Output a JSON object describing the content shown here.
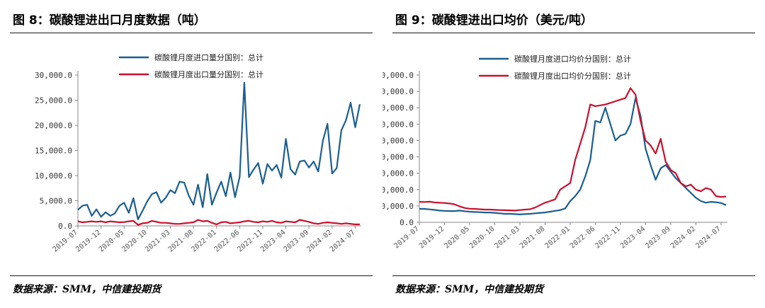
{
  "figures": [
    {
      "title": "图 8：碳酸锂进出口月度数据（吨）",
      "source": "数据来源：SMM，中信建投期货"
    },
    {
      "title": "图 9：碳酸锂进出口均价（美元/吨）",
      "source": "数据来源：SMM，中信建投期货"
    }
  ],
  "colors": {
    "import": "#1b5f8f",
    "export": "#c8102e"
  },
  "chart_data": [
    {
      "type": "line",
      "title": "",
      "xlabel": "",
      "ylabel": "",
      "ylim": [
        0,
        30000
      ],
      "yticks": [
        0,
        5000,
        10000,
        15000,
        20000,
        25000,
        30000
      ],
      "ytick_labels": [
        "0.0",
        "5,000.0",
        "10,000.0",
        "15,000.0",
        "20,000.0",
        "25,000.0",
        "30,000.0"
      ],
      "x_start": "2019-07",
      "xtick_labels": [
        "2019-07",
        "2019-12",
        "2020-05",
        "2020-10",
        "2021-03",
        "2021-08",
        "2022-01",
        "2022-06",
        "2022-11",
        "2023-04",
        "2023-09",
        "2024-02",
        "2024-07"
      ],
      "legend_position": "top-left",
      "grid": false,
      "series": [
        {
          "name": "碳酸锂月度进口量分国别：总计",
          "color": "#1b5f8f",
          "values": [
            3200,
            4000,
            4200,
            2000,
            3300,
            1800,
            2700,
            2000,
            2500,
            4000,
            4600,
            2600,
            5500,
            1300,
            3000,
            4900,
            6300,
            6700,
            4600,
            5600,
            7100,
            6500,
            8800,
            8600,
            6000,
            4200,
            8200,
            3700,
            10300,
            4200,
            6600,
            8800,
            5900,
            10600,
            5700,
            9800,
            28500,
            9700,
            11200,
            12500,
            8400,
            12300,
            11000,
            12100,
            9600,
            17300,
            11300,
            10200,
            12800,
            13000,
            11600,
            12800,
            10800,
            16900,
            20300,
            10400,
            11500,
            19000,
            21000,
            24500,
            19600,
            24200
          ]
        },
        {
          "name": "碳酸锂月度出口量分国别：总计",
          "color": "#c8102e",
          "values": [
            900,
            700,
            800,
            900,
            800,
            900,
            700,
            900,
            800,
            700,
            750,
            900,
            1000,
            200,
            500,
            600,
            1000,
            800,
            600,
            600,
            500,
            400,
            400,
            500,
            600,
            700,
            1200,
            900,
            1000,
            600,
            300,
            700,
            800,
            500,
            600,
            700,
            900,
            1000,
            800,
            700,
            900,
            800,
            1000,
            700,
            600,
            900,
            800,
            700,
            1200,
            1000,
            800,
            500,
            400,
            600,
            700,
            600,
            500,
            400,
            500,
            400,
            300,
            300
          ]
        }
      ]
    },
    {
      "type": "line",
      "title": "",
      "xlabel": "",
      "ylabel": "",
      "ylim": [
        0,
        90000
      ],
      "yticks": [
        0,
        10000,
        20000,
        30000,
        40000,
        50000,
        60000,
        70000,
        80000,
        90000
      ],
      "ytick_labels": [
        "0.0",
        "10,000.0",
        "20,000.0",
        "30,000.0",
        "40,000.0",
        "50,000.0",
        "60,000.0",
        "70,000.0",
        "80,000.0",
        "90,000.0"
      ],
      "x_start": "2019-07",
      "xtick_labels": [
        "2019-07",
        "2019-12",
        "2020-05",
        "2020-10",
        "2021-03",
        "2021-08",
        "2022-01",
        "2022-06",
        "2022-11",
        "2023-04",
        "2023-09",
        "2024-02",
        "2024-07"
      ],
      "legend_position": "top-left",
      "grid": false,
      "series": [
        {
          "name": "碳酸锂月度进口均价分国别：总计",
          "color": "#1b5f8f",
          "values": [
            8200,
            8200,
            7900,
            7600,
            7200,
            7000,
            6900,
            6900,
            7200,
            6800,
            6500,
            6300,
            6200,
            6000,
            6000,
            5800,
            5500,
            5200,
            5200,
            5000,
            4800,
            5000,
            5200,
            5500,
            5800,
            6000,
            6500,
            7000,
            7500,
            8500,
            13000,
            16000,
            20000,
            28000,
            38000,
            62000,
            61000,
            70000,
            60000,
            50000,
            53000,
            54000,
            60000,
            76000,
            65000,
            45000,
            35000,
            26000,
            33000,
            35000,
            31000,
            27000,
            24000,
            21000,
            18000,
            15000,
            13000,
            12000,
            12500,
            12300,
            11800,
            10500
          ]
        },
        {
          "name": "碳酸锂月度出口均价分国别：总计",
          "color": "#c8102e",
          "values": [
            12500,
            12400,
            12600,
            12200,
            12000,
            11800,
            11500,
            11000,
            9800,
            8800,
            8300,
            8200,
            8000,
            7800,
            7800,
            7600,
            7500,
            7400,
            7300,
            7200,
            7500,
            7800,
            8000,
            9000,
            10500,
            12000,
            13000,
            14000,
            20000,
            22000,
            24000,
            38000,
            48000,
            58000,
            72000,
            71000,
            71500,
            72000,
            73000,
            74000,
            75000,
            76000,
            82000,
            78000,
            62000,
            50000,
            47000,
            42000,
            51000,
            37000,
            32000,
            30000,
            24000,
            22000,
            23000,
            20000,
            19000,
            21000,
            20000,
            16000,
            15500,
            15800
          ]
        }
      ]
    }
  ]
}
